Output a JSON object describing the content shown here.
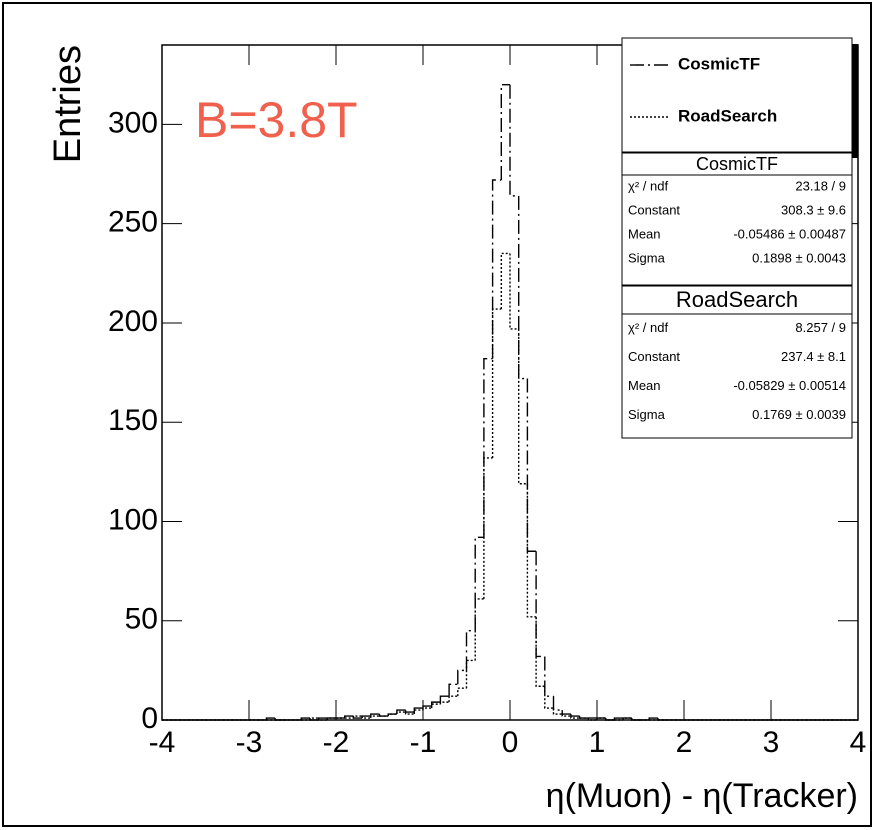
{
  "chart_data": {
    "type": "histogram",
    "xlabel": "η(Muon) - η(Tracker)",
    "ylabel": "Entries",
    "annotation": "B=3.8T",
    "annotation_color": "#f0604c",
    "bins": [
      -4,
      -3.9,
      -3.8,
      -3.7,
      -3.6,
      -3.5,
      -3.4,
      -3.3,
      -3.2,
      -3.1,
      -3,
      -2.9,
      -2.8,
      -2.7,
      -2.6,
      -2.5,
      -2.4,
      -2.3,
      -2.2,
      -2.1,
      -2,
      -1.9,
      -1.8,
      -1.7,
      -1.6,
      -1.5,
      -1.4,
      -1.3,
      -1.2,
      -1.1,
      -1,
      -0.9,
      -0.8,
      -0.7,
      -0.6,
      -0.5,
      -0.4,
      -0.3,
      -0.2,
      -0.1,
      0,
      0.1,
      0.2,
      0.3,
      0.4,
      0.5,
      0.6,
      0.7,
      0.8,
      0.9,
      1,
      1.1,
      1.2,
      1.3,
      1.4,
      1.5,
      1.6,
      1.7,
      1.8,
      1.9,
      2,
      2.1,
      2.2,
      2.3,
      2.4,
      2.5,
      2.6,
      2.7,
      2.8,
      2.9,
      3,
      3.1,
      3.2,
      3.3,
      3.4,
      3.5,
      3.6,
      3.7,
      3.8,
      3.9,
      4
    ],
    "series": [
      {
        "name": "CosmicTF",
        "color": "#000000",
        "style": "dashdot",
        "values": [
          0,
          0,
          0,
          0,
          0,
          0,
          0,
          0,
          0,
          0,
          0,
          0,
          1,
          0,
          0,
          0,
          1,
          0,
          1,
          1,
          1,
          2,
          1,
          2,
          3,
          2,
          3,
          5,
          4,
          6,
          7,
          9,
          12,
          18,
          25,
          45,
          92,
          182,
          272,
          320,
          264,
          172,
          85,
          32,
          12,
          5,
          3,
          2,
          1,
          1,
          1,
          0,
          1,
          1,
          0,
          0,
          1,
          0,
          0,
          0,
          0,
          0,
          0,
          0,
          0,
          0,
          0,
          0,
          0,
          0,
          0,
          0,
          0,
          0,
          0,
          0,
          0,
          0,
          0,
          0
        ]
      },
      {
        "name": "RoadSearch",
        "color": "#000000",
        "style": "dotted",
        "values": [
          0,
          0,
          0,
          0,
          0,
          0,
          0,
          0,
          0,
          0,
          0,
          0,
          0,
          0,
          0,
          0,
          0,
          1,
          0,
          1,
          1,
          1,
          2,
          1,
          2,
          2,
          3,
          4,
          3,
          5,
          6,
          8,
          9,
          12,
          16,
          30,
          61,
          132,
          207,
          235,
          197,
          119,
          52,
          17,
          6,
          3,
          2,
          1,
          1,
          0,
          1,
          0,
          0,
          1,
          0,
          0,
          0,
          0,
          0,
          0,
          0,
          0,
          0,
          0,
          0,
          0,
          0,
          0,
          0,
          0,
          0,
          0,
          0,
          0,
          0,
          0,
          0,
          0,
          0,
          0
        ]
      }
    ],
    "xlim": [
      -4,
      4
    ],
    "xticks": [
      -4,
      -3,
      -2,
      -1,
      0,
      1,
      2,
      3,
      4
    ],
    "ylim": [
      0,
      340
    ],
    "yticks": [
      0,
      50,
      100,
      150,
      200,
      250,
      300
    ],
    "stats": [
      {
        "title": "CosmicTF",
        "rows": [
          [
            "χ² / ndf",
            "23.18 / 9"
          ],
          [
            "Constant",
            "308.3 ± 9.6"
          ],
          [
            "Mean",
            "-0.05486 ± 0.00487"
          ],
          [
            "Sigma",
            "0.1898 ± 0.0043"
          ]
        ]
      },
      {
        "title": "RoadSearch",
        "rows": [
          [
            "χ² / ndf",
            "8.257 / 9"
          ],
          [
            "Constant",
            "237.4 ± 8.1"
          ],
          [
            "Mean",
            "-0.05829 ± 0.00514"
          ],
          [
            "Sigma",
            "0.1769 ± 0.0039"
          ]
        ]
      }
    ]
  }
}
